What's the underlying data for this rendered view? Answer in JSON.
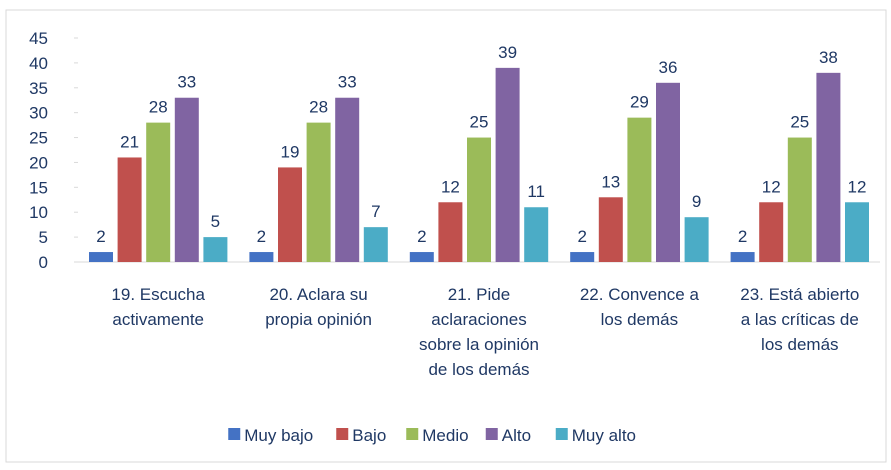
{
  "chart_data": {
    "type": "bar",
    "categories": [
      "19. Escucha activamente",
      "20. Aclara su propia opinión",
      "21. Pide aclaraciones sobre la opinión de los demás",
      "22. Convence a los demás",
      "23. Está abierto a las críticas de los demás"
    ],
    "series": [
      {
        "name": "Muy bajo",
        "color": "#4472c4",
        "values": [
          2,
          2,
          2,
          2,
          2
        ]
      },
      {
        "name": "Bajo",
        "color": "#c0504d",
        "values": [
          21,
          19,
          12,
          13,
          12
        ]
      },
      {
        "name": "Medio",
        "color": "#9bbb59",
        "values": [
          28,
          28,
          25,
          29,
          25
        ]
      },
      {
        "name": "Alto",
        "color": "#8064a2",
        "values": [
          33,
          33,
          39,
          36,
          38
        ]
      },
      {
        "name": "Muy alto",
        "color": "#4bacc6",
        "values": [
          5,
          7,
          11,
          9,
          12
        ]
      }
    ],
    "ylim": [
      0,
      45
    ],
    "yticks": [
      0,
      5,
      10,
      15,
      20,
      25,
      30,
      35,
      40,
      45
    ],
    "legend": "bottom"
  }
}
